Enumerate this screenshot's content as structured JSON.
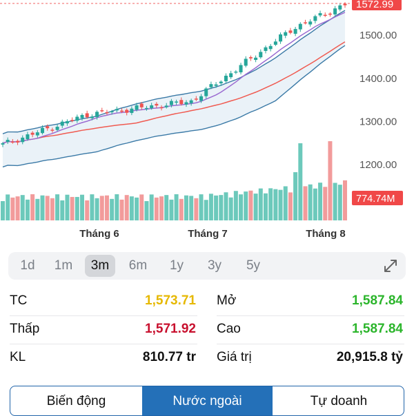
{
  "chart_data": {
    "type": "candlestick",
    "x_labels": [
      "Tháng 6",
      "Tháng 7",
      "Tháng 8"
    ],
    "y_ticks": [
      "1500.00",
      "1400.00",
      "1300.00",
      "1200.00"
    ],
    "price_tag": "1572.99",
    "volume_tag": "774.74M",
    "ylim": [
      1165,
      1580
    ],
    "colors": {
      "up": "#26a69a",
      "down": "#ef5350",
      "vol_up": "#6cc9bb",
      "vol_down": "#f29b9b",
      "band": "#3a79a6",
      "band_fill": "#eaf2f8",
      "ma_fast": "#9b6bd1",
      "ma_slow": "#f05a50",
      "tag_red": "#f04848",
      "guide": "#f06060"
    }
  },
  "timeframes": [
    "1d",
    "1m",
    "3m",
    "6m",
    "1y",
    "3y",
    "5y"
  ],
  "active_timeframe": "3m",
  "expand_icon": "expand-arrows-icon",
  "stats": {
    "tc_label": "TC",
    "tc_value": "1,573.71",
    "open_label": "Mở",
    "open_value": "1,587.84",
    "low_label": "Thấp",
    "low_value": "1,571.92",
    "high_label": "Cao",
    "high_value": "1,587.84",
    "vol_label": "KL",
    "vol_value": "810.77 tr",
    "value_label": "Giá trị",
    "value_value": "20,915.8 tỷ",
    "colors": {
      "ref": "#e6b800",
      "up": "#2bb52b",
      "down": "#c8102e",
      "neutral": "#111111"
    }
  },
  "tabs": [
    "Biến động",
    "Nước ngoài",
    "Tự doanh"
  ],
  "active_tab": "Nước ngoài"
}
